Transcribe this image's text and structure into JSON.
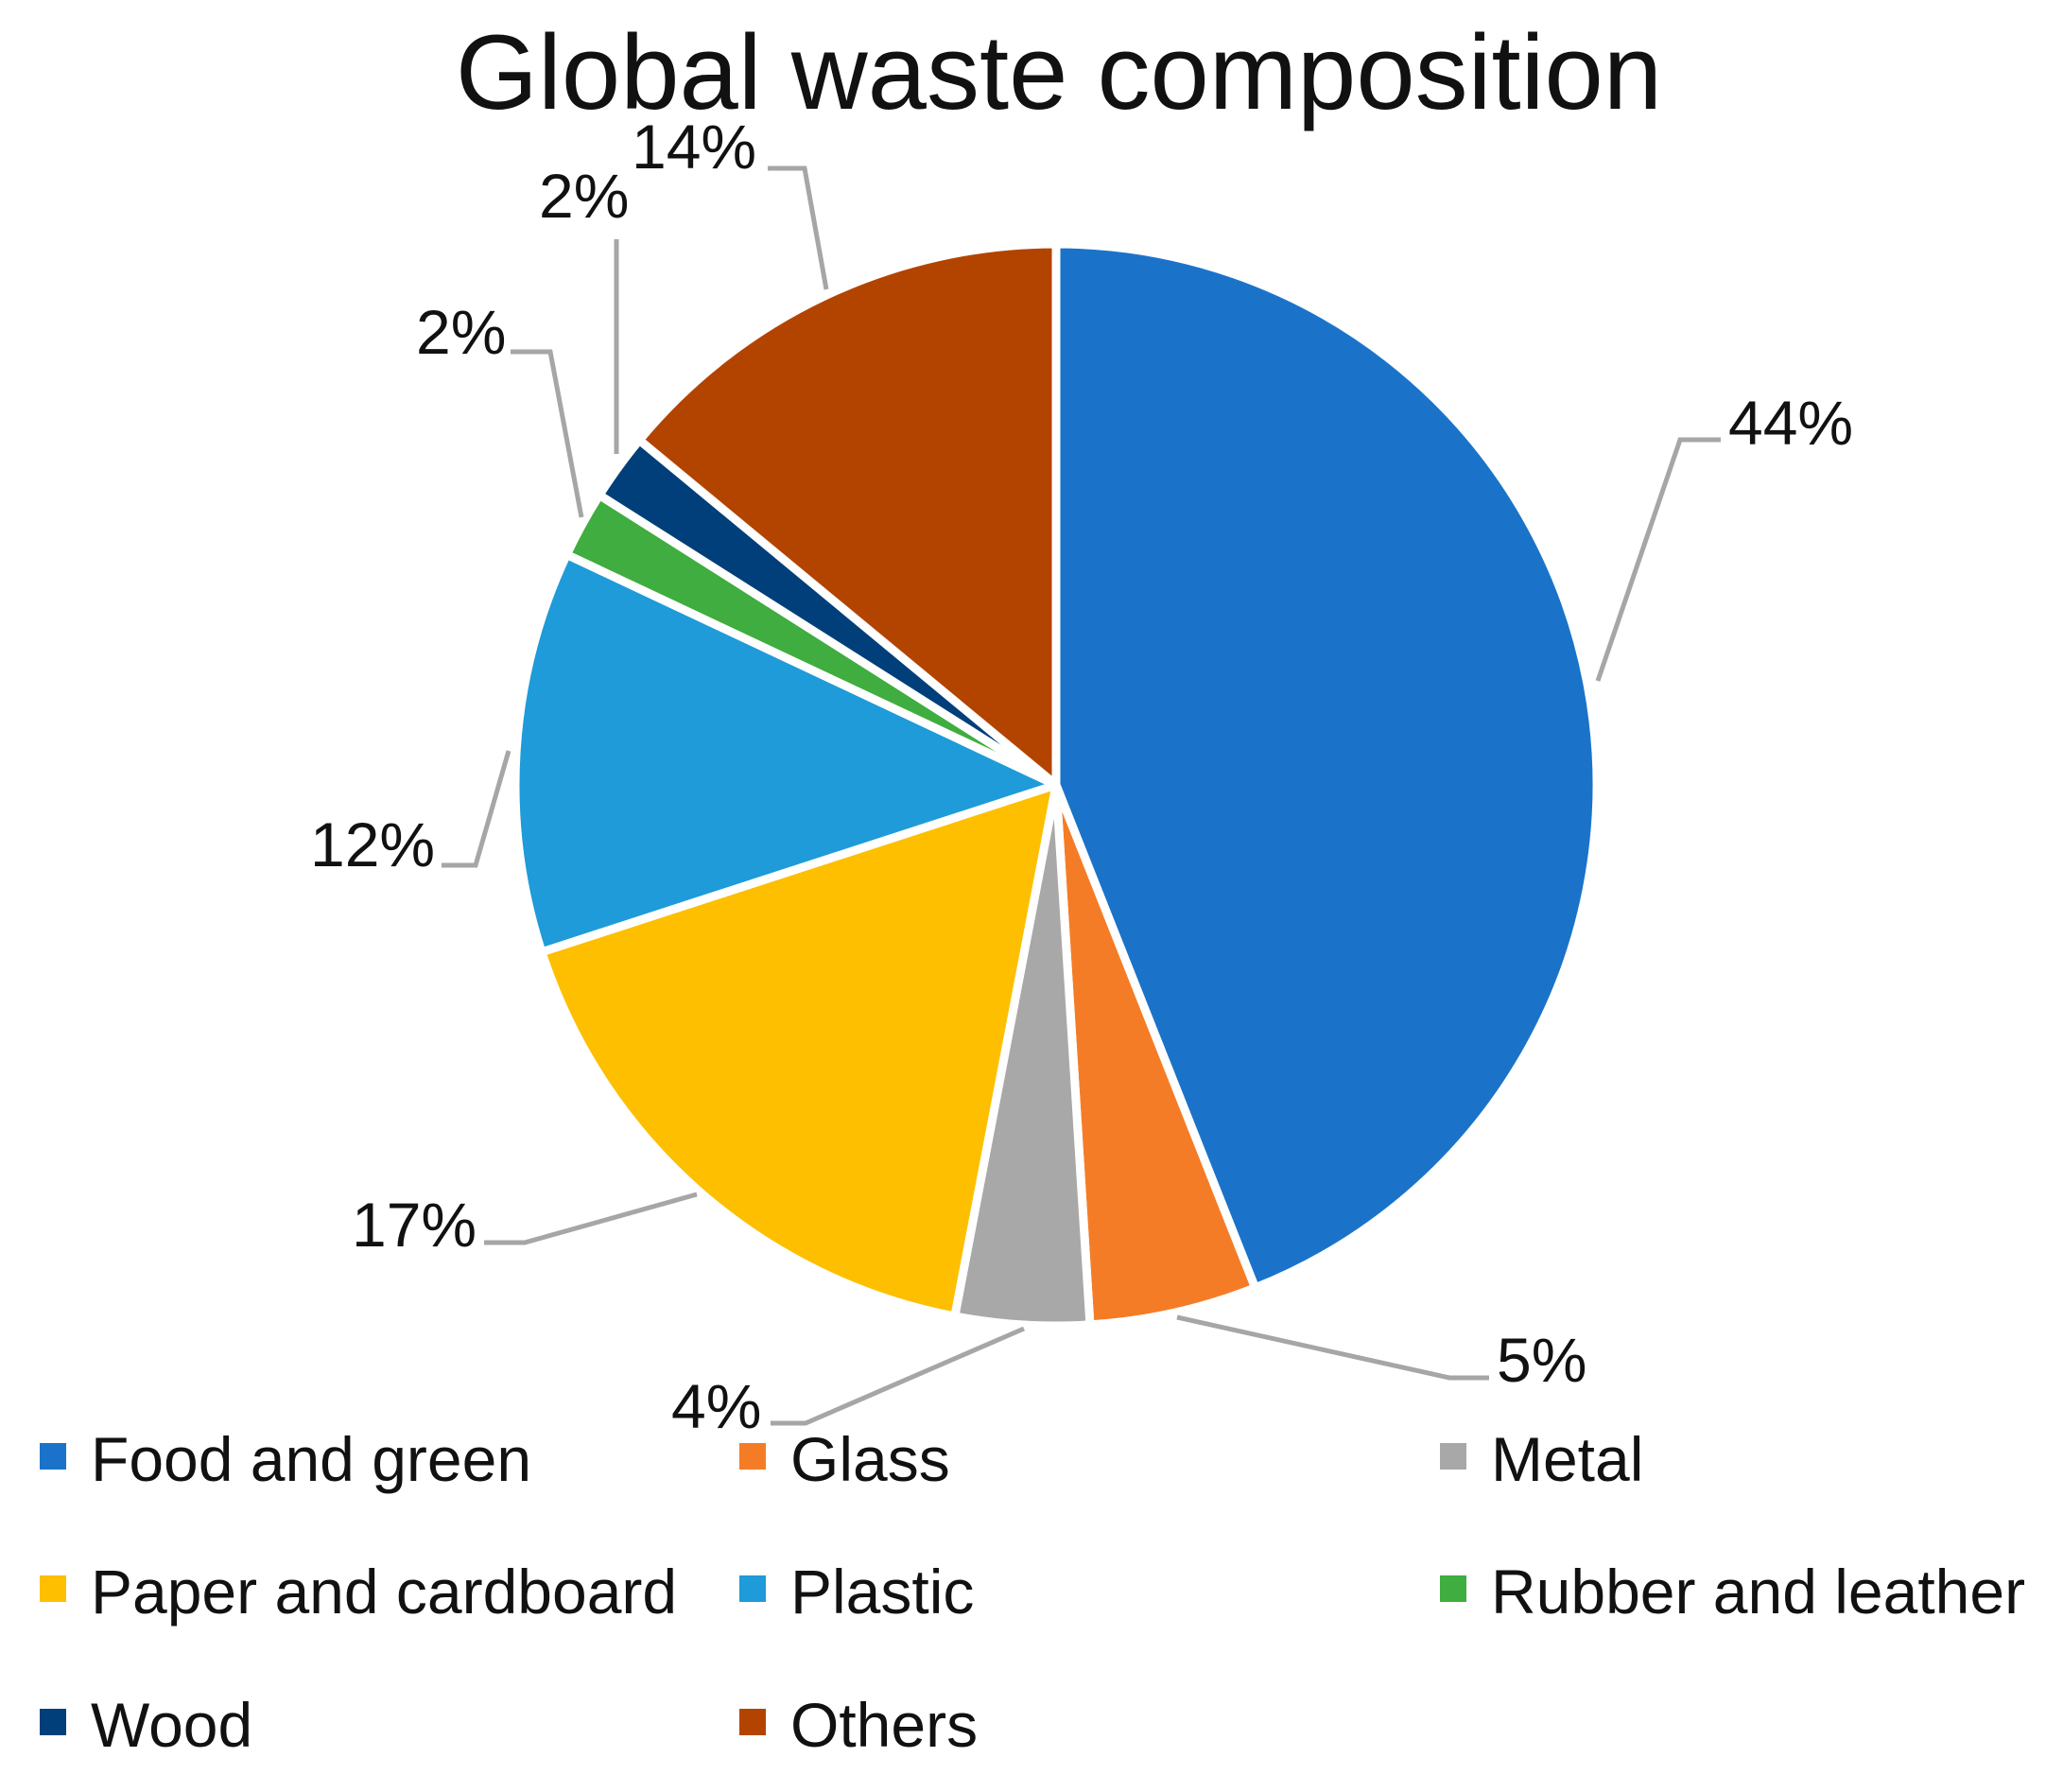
{
  "chart_data": {
    "type": "pie",
    "title": "Global waste composition",
    "slices": [
      {
        "name": "Food and green",
        "value": 44,
        "label": "44%",
        "color": "#1a73c9"
      },
      {
        "name": "Glass",
        "value": 5,
        "label": "5%",
        "color": "#f57c26"
      },
      {
        "name": "Metal",
        "value": 4,
        "label": "4%",
        "color": "#a8a8a8"
      },
      {
        "name": "Paper and cardboard",
        "value": 17,
        "label": "17%",
        "color": "#fdbf00"
      },
      {
        "name": "Plastic",
        "value": 12,
        "label": "12%",
        "color": "#1e9bd8"
      },
      {
        "name": "Rubber and leather",
        "value": 2,
        "label": "2%",
        "color": "#3fad3f"
      },
      {
        "name": "Wood",
        "value": 2,
        "label": "2%",
        "color": "#003f7a"
      },
      {
        "name": "Others",
        "value": 14,
        "label": "14%",
        "color": "#b34400"
      }
    ],
    "legend_position": "bottom",
    "leader_line_color": "#a6a6a6"
  }
}
